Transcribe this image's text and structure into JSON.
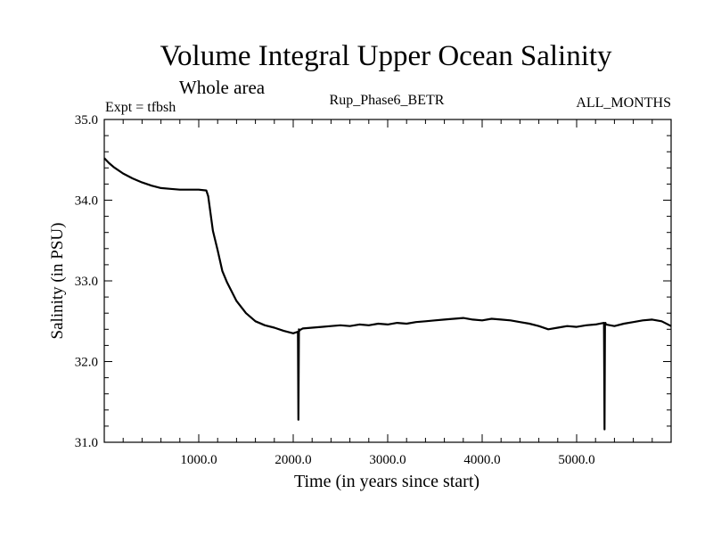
{
  "chart_data": {
    "type": "line",
    "title": "Volume Integral Upper Ocean Salinity",
    "subtitle": "Whole area",
    "experiment_label": "Expt = tfbsh",
    "run_label": "Rup_Phase6_BETR",
    "months_label": "ALL_MONTHS",
    "xlabel": "Time (in years since start)",
    "ylabel": "Salinity (in PSU)",
    "xlim": [
      0,
      6000
    ],
    "ylim": [
      31.0,
      35.0
    ],
    "x_ticks": [
      1000,
      2000,
      3000,
      4000,
      5000
    ],
    "x_tick_labels": [
      "1000.0",
      "2000.0",
      "3000.0",
      "4000.0",
      "5000.0"
    ],
    "y_ticks": [
      31.0,
      32.0,
      33.0,
      34.0,
      35.0
    ],
    "y_tick_labels": [
      "31.0",
      "32.0",
      "33.0",
      "34.0",
      "35.0"
    ],
    "grid": false,
    "series": [
      {
        "name": "Salinity",
        "x": [
          0,
          50,
          100,
          200,
          300,
          400,
          500,
          600,
          700,
          800,
          900,
          1000,
          1080,
          1100,
          1150,
          1200,
          1250,
          1300,
          1400,
          1500,
          1600,
          1700,
          1800,
          1900,
          2000,
          2050,
          2055,
          2060,
          2065,
          2070,
          2100,
          2200,
          2300,
          2400,
          2500,
          2600,
          2700,
          2800,
          2900,
          3000,
          3100,
          3200,
          3300,
          3400,
          3500,
          3600,
          3700,
          3800,
          3900,
          4000,
          4100,
          4200,
          4300,
          4400,
          4500,
          4600,
          4700,
          4800,
          4900,
          5000,
          5100,
          5200,
          5290,
          5295,
          5300,
          5305,
          5310,
          5400,
          5500,
          5600,
          5700,
          5800,
          5900,
          6000
        ],
        "values": [
          34.52,
          34.46,
          34.41,
          34.33,
          34.27,
          34.22,
          34.18,
          34.15,
          34.14,
          34.13,
          34.13,
          34.13,
          34.12,
          34.05,
          33.62,
          33.38,
          33.12,
          32.98,
          32.75,
          32.6,
          32.5,
          32.45,
          32.42,
          32.38,
          32.35,
          32.37,
          31.28,
          32.4,
          32.38,
          32.39,
          32.41,
          32.42,
          32.43,
          32.44,
          32.45,
          32.44,
          32.46,
          32.45,
          32.47,
          32.46,
          32.48,
          32.47,
          32.49,
          32.5,
          32.51,
          32.52,
          32.53,
          32.54,
          32.52,
          32.51,
          32.53,
          32.52,
          32.51,
          32.49,
          32.47,
          32.44,
          32.4,
          32.42,
          32.44,
          32.43,
          32.45,
          32.46,
          32.48,
          31.16,
          32.47,
          32.48,
          32.46,
          32.44,
          32.47,
          32.49,
          32.51,
          32.52,
          32.5,
          32.44
        ]
      }
    ]
  }
}
